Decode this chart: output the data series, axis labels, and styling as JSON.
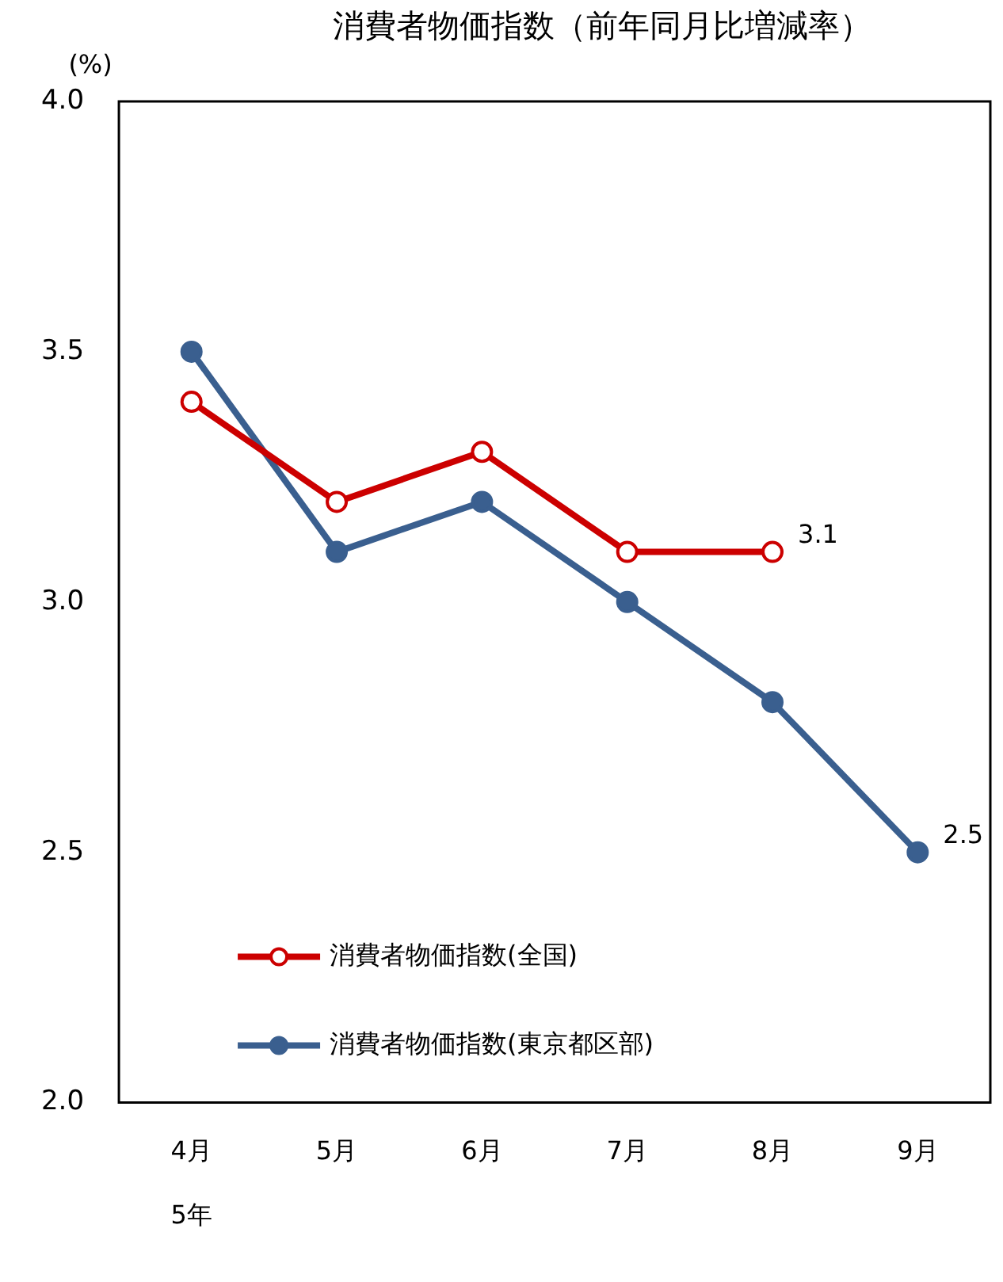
{
  "chart_data": {
    "type": "line",
    "title": "消費者物価指数（前年同月比増減率）",
    "ylabel": "(%)",
    "categories": [
      "4月",
      "5月",
      "6月",
      "7月",
      "8月",
      "9月"
    ],
    "annotations": [
      "5年"
    ],
    "series": [
      {
        "name": "消費者物価指数(全国)",
        "color": "#cc0000",
        "values": [
          3.4,
          3.2,
          3.3,
          3.1,
          3.1,
          null
        ],
        "value_labels": [
          null,
          null,
          null,
          null,
          "3.1",
          null
        ]
      },
      {
        "name": "消費者物価指数(東京都区部)",
        "color": "#3a5f8f",
        "values": [
          3.5,
          3.1,
          3.2,
          3.0,
          2.8,
          2.5
        ],
        "value_labels": [
          null,
          null,
          null,
          null,
          null,
          "2.5"
        ]
      }
    ],
    "ylim": [
      2.0,
      4.0
    ],
    "yticks": [
      {
        "value": 2.0,
        "label": "2.0"
      },
      {
        "value": 2.5,
        "label": "2.5"
      },
      {
        "value": 3.0,
        "label": "3.0"
      },
      {
        "value": 3.5,
        "label": "3.5"
      },
      {
        "value": 4.0,
        "label": "4.0"
      }
    ],
    "grid": false,
    "legend": "bottom left",
    "marker": "circle",
    "line_style": "solid"
  }
}
